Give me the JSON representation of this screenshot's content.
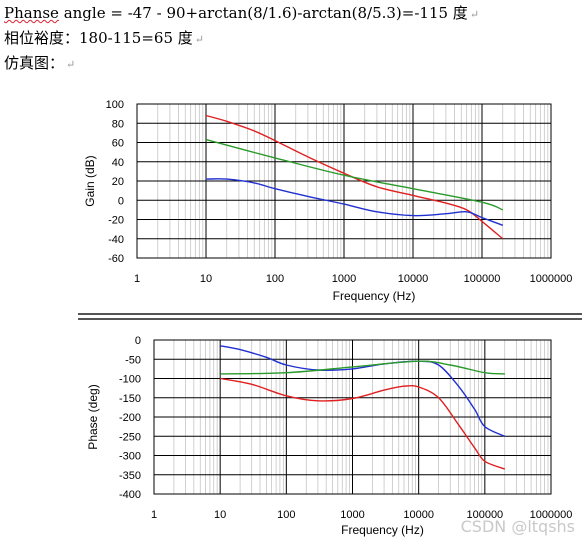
{
  "text": {
    "line1_prefix": "Phanse",
    "line1_rest": " angle = -47 - 90+arctan(8/1.6)-arctan(8/5.3)=-115 度",
    "line2": "相位裕度：180-115=65 度",
    "line3": "仿真图：",
    "return_mark": "↵"
  },
  "watermark": "CSDN @ltqshs",
  "chart_data": [
    {
      "type": "line",
      "xscale": "log",
      "xlim": [
        1,
        1000000
      ],
      "xticks": [
        "1",
        "10",
        "100",
        "1000",
        "10000",
        "100000",
        "1000000"
      ],
      "ylim": [
        -60,
        100
      ],
      "yticks": [
        "100",
        "80",
        "60",
        "40",
        "20",
        "0",
        "-20",
        "-40",
        "-60"
      ],
      "xlabel": "Frequency (Hz)",
      "ylabel": "Gain (dB)",
      "grid": true,
      "series": [
        {
          "color": "#e02020",
          "x": [
            10,
            20,
            50,
            100,
            300,
            1000,
            3000,
            10000,
            30000,
            60000,
            100000,
            200000
          ],
          "y": [
            88,
            82,
            72,
            62,
            45,
            28,
            14,
            5,
            -3,
            -10,
            -22,
            -40
          ]
        },
        {
          "color": "#2a9a2a",
          "x": [
            10,
            100,
            1000,
            10000,
            100000,
            200000
          ],
          "y": [
            63,
            44,
            26,
            12,
            -2,
            -10
          ]
        },
        {
          "color": "#2030d0",
          "x": [
            10,
            20,
            50,
            100,
            300,
            1000,
            3000,
            10000,
            30000,
            60000,
            100000,
            200000
          ],
          "y": [
            22,
            22,
            18,
            12,
            4,
            -4,
            -12,
            -16,
            -14,
            -12,
            -18,
            -26
          ]
        }
      ]
    },
    {
      "type": "line",
      "xscale": "log",
      "xlim": [
        1,
        1000000
      ],
      "xticks": [
        "1",
        "10",
        "100",
        "1000",
        "10000",
        "100000",
        "1000000"
      ],
      "ylim": [
        -400,
        0
      ],
      "yticks": [
        "0",
        "-50",
        "-100",
        "-150",
        "-200",
        "-250",
        "-300",
        "-350",
        "-400"
      ],
      "xlabel": "Frequency (Hz)",
      "ylabel": "Phase (deg)",
      "grid": true,
      "series": [
        {
          "color": "#2030d0",
          "x": [
            10,
            20,
            50,
            100,
            300,
            1000,
            3000,
            10000,
            20000,
            40000,
            70000,
            100000,
            200000
          ],
          "y": [
            -15,
            -25,
            -45,
            -65,
            -78,
            -75,
            -62,
            -55,
            -65,
            -120,
            -180,
            -225,
            -250
          ]
        },
        {
          "color": "#2a9a2a",
          "x": [
            10,
            100,
            1000,
            10000,
            30000,
            100000,
            200000
          ],
          "y": [
            -88,
            -85,
            -70,
            -55,
            -65,
            -85,
            -88
          ]
        },
        {
          "color": "#e02020",
          "x": [
            10,
            30,
            100,
            300,
            1000,
            3000,
            6000,
            10000,
            20000,
            40000,
            70000,
            100000,
            200000
          ],
          "y": [
            -100,
            -115,
            -145,
            -158,
            -152,
            -130,
            -120,
            -122,
            -150,
            -220,
            -280,
            -315,
            -335
          ]
        }
      ]
    }
  ]
}
